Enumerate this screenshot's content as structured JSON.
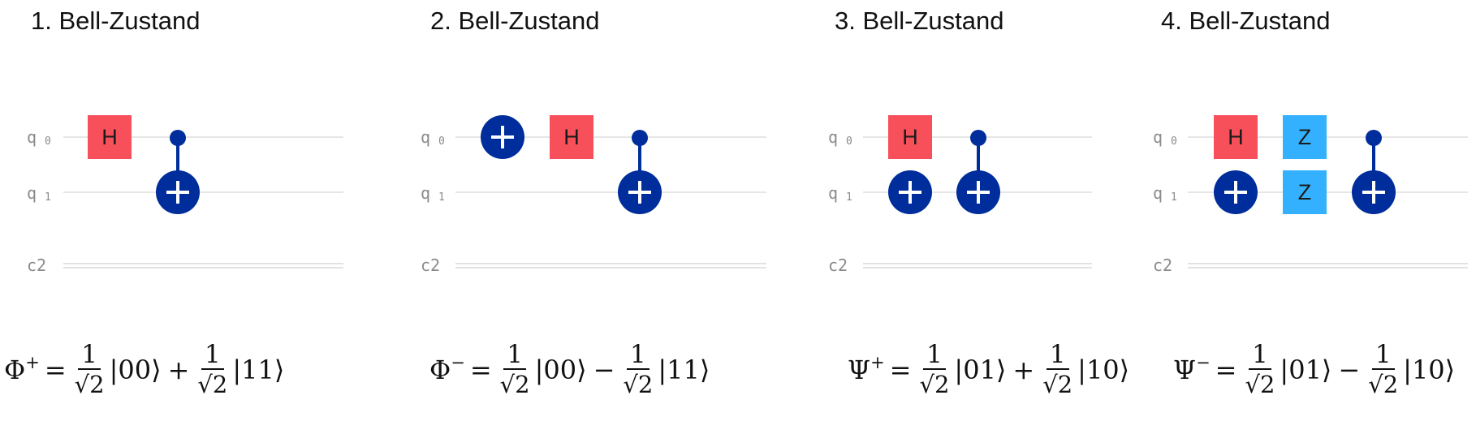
{
  "panels": [
    {
      "title": "1. Bell-Zustand",
      "q0": "q",
      "q0sub": "0",
      "q1": "q",
      "q1sub": "1",
      "c": "c2",
      "gates": {
        "h": "H"
      },
      "formula": {
        "lhs": "Φ",
        "sup": "+",
        "eq": "=",
        "num1": "1",
        "den1": "√2",
        "ket1": "|00⟩",
        "op": "+",
        "num2": "1",
        "den2": "√2",
        "ket2": "|11⟩"
      }
    },
    {
      "title": "2. Bell-Zustand",
      "q0": "q",
      "q0sub": "0",
      "q1": "q",
      "q1sub": "1",
      "c": "c2",
      "gates": {
        "h": "H"
      },
      "formula": {
        "lhs": "Φ",
        "sup": "−",
        "eq": "=",
        "num1": "1",
        "den1": "√2",
        "ket1": "|00⟩",
        "op": "−",
        "num2": "1",
        "den2": "√2",
        "ket2": "|11⟩"
      }
    },
    {
      "title": "3. Bell-Zustand",
      "q0": "q",
      "q0sub": "0",
      "q1": "q",
      "q1sub": "1",
      "c": "c2",
      "gates": {
        "h": "H"
      },
      "formula": {
        "lhs": "Ψ",
        "sup": "+",
        "eq": "=",
        "num1": "1",
        "den1": "√2",
        "ket1": "|01⟩",
        "op": "+",
        "num2": "1",
        "den2": "√2",
        "ket2": "|10⟩"
      }
    },
    {
      "title": "4. Bell-Zustand",
      "q0": "q",
      "q0sub": "0",
      "q1": "q",
      "q1sub": "1",
      "c": "c2",
      "gates": {
        "h": "H",
        "z0": "Z",
        "z1": "Z"
      },
      "formula": {
        "lhs": "Ψ",
        "sup": "−",
        "eq": "=",
        "num1": "1",
        "den1": "√2",
        "ket1": "|01⟩",
        "op": "−",
        "num2": "1",
        "den2": "√2",
        "ket2": "|10⟩"
      }
    }
  ],
  "colors": {
    "h_gate": "#f7505a",
    "z_gate": "#33b1ff",
    "cnot": "#002d9c",
    "wire": "#e6e6e6",
    "label": "#8a8a8a"
  }
}
